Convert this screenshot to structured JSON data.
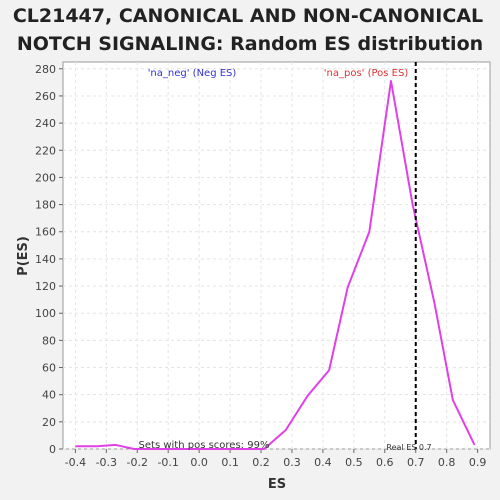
{
  "chart_data": {
    "type": "line",
    "title_line1": "CL21447, CANONICAL AND NON-CANONICAL",
    "title_line2": "NOTCH SIGNALING: Random ES distribution",
    "xlabel": "ES",
    "ylabel": "P(ES)",
    "xlim": [
      -0.44,
      0.94
    ],
    "ylim": [
      0,
      285
    ],
    "x_ticks": [
      -0.4,
      -0.3,
      -0.2,
      -0.1,
      0.0,
      0.1,
      0.2,
      0.3,
      0.4,
      0.5,
      0.6,
      0.7,
      0.8,
      0.9
    ],
    "x_tick_labels": [
      "-0.4",
      "-0.3",
      "-0.2",
      "-0.1",
      "0.0",
      "0.1",
      "0.2",
      "0.3",
      "0.4",
      "0.5",
      "0.6",
      "0.7",
      "0.8",
      "0.9"
    ],
    "y_ticks": [
      0,
      20,
      40,
      60,
      80,
      100,
      120,
      140,
      160,
      180,
      200,
      220,
      240,
      260,
      280
    ],
    "y_tick_labels": [
      "0",
      "20",
      "40",
      "60",
      "80",
      "100",
      "120",
      "140",
      "160",
      "180",
      "200",
      "220",
      "240",
      "260",
      "280"
    ],
    "grid": true,
    "series": [
      {
        "color": "#e040e8",
        "x": [
          -0.4,
          -0.33,
          -0.27,
          -0.21,
          -0.15,
          -0.09,
          -0.03,
          0.03,
          0.09,
          0.15,
          0.21,
          0.28,
          0.35,
          0.42,
          0.48,
          0.55,
          0.62,
          0.69,
          0.76,
          0.82,
          0.89
        ],
        "y": [
          2,
          2,
          3,
          0,
          0,
          0,
          0,
          0,
          0,
          0,
          0,
          14,
          39,
          58,
          119,
          160,
          271,
          180,
          108,
          36,
          3
        ]
      }
    ],
    "real_es": 0.7,
    "real_es_label": "Real ES 0.7",
    "neg_label": "'na_neg' (Neg ES)",
    "pos_label": "'na_pos' (Pos ES)",
    "sets_label": "Sets with pos scores: 99%",
    "colors": {
      "neg_label": "#3333cc",
      "pos_label": "#dd3333",
      "line": "#e040e8",
      "plot_bg": "#ffffff",
      "page_bg": "#f2f2f2"
    }
  }
}
